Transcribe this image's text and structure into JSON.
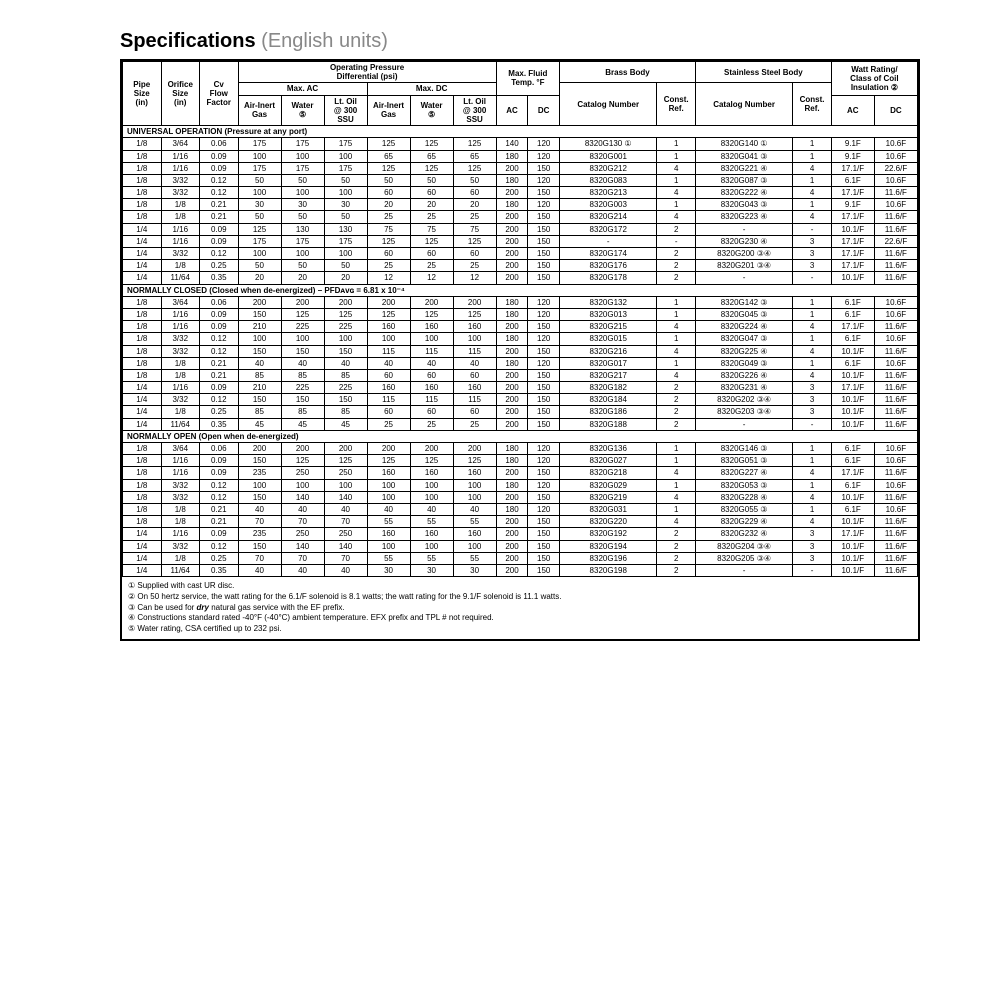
{
  "title": "Specifications",
  "subtitle": "(English units)",
  "headers": {
    "opd": "Operating Pressure\nDifferential (psi)",
    "maxac": "Max. AC",
    "maxdc": "Max. DC",
    "fluid": "Max. Fluid\nTemp. °F",
    "brass": "Brass Body",
    "ss": "Stainless Steel Body",
    "watt": "Watt Rating/\nClass of Coil\nInsulation ②",
    "pipe": "Pipe\nSize\n(in)",
    "orifice": "Orifice\nSize\n(in)",
    "cv": "Cv\nFlow\nFactor",
    "air": "Air-Inert\nGas",
    "water": "Water\n⑤",
    "oil": "Lt. Oil\n@ 300\nSSU",
    "ac": "AC",
    "dc": "DC",
    "cat": "Catalog Number",
    "ref": "Const.\nRef."
  },
  "sections": [
    {
      "label": "UNIVERSAL OPERATION (Pressure at any port)",
      "rows": [
        [
          "1/8",
          "3/64",
          "0.06",
          "175",
          "175",
          "175",
          "125",
          "125",
          "125",
          "140",
          "120",
          "8320G130 ①",
          "1",
          "8320G140 ①",
          "1",
          "9.1F",
          "10.6F"
        ],
        [
          "1/8",
          "1/16",
          "0.09",
          "100",
          "100",
          "100",
          "65",
          "65",
          "65",
          "180",
          "120",
          "8320G001",
          "1",
          "8320G041 ③",
          "1",
          "9.1F",
          "10.6F"
        ],
        [
          "1/8",
          "1/16",
          "0.09",
          "175",
          "175",
          "175",
          "125",
          "125",
          "125",
          "200",
          "150",
          "8320G212",
          "4",
          "8320G221 ④",
          "4",
          "17.1/F",
          "22.6/F"
        ],
        [
          "1/8",
          "3/32",
          "0.12",
          "50",
          "50",
          "50",
          "50",
          "50",
          "50",
          "180",
          "120",
          "8320G083",
          "1",
          "8320G087 ③",
          "1",
          "6.1F",
          "10.6F"
        ],
        [
          "1/8",
          "3/32",
          "0.12",
          "100",
          "100",
          "100",
          "60",
          "60",
          "60",
          "200",
          "150",
          "8320G213",
          "4",
          "8320G222 ④",
          "4",
          "17.1/F",
          "11.6/F"
        ],
        [
          "1/8",
          "1/8",
          "0.21",
          "30",
          "30",
          "30",
          "20",
          "20",
          "20",
          "180",
          "120",
          "8320G003",
          "1",
          "8320G043 ③",
          "1",
          "9.1F",
          "10.6F"
        ],
        [
          "1/8",
          "1/8",
          "0.21",
          "50",
          "50",
          "50",
          "25",
          "25",
          "25",
          "200",
          "150",
          "8320G214",
          "4",
          "8320G223 ④",
          "4",
          "17.1/F",
          "11.6/F"
        ],
        [
          "1/4",
          "1/16",
          "0.09",
          "125",
          "130",
          "130",
          "75",
          "75",
          "75",
          "200",
          "150",
          "8320G172",
          "2",
          "-",
          "-",
          "10.1/F",
          "11.6/F"
        ],
        [
          "1/4",
          "1/16",
          "0.09",
          "175",
          "175",
          "175",
          "125",
          "125",
          "125",
          "200",
          "150",
          "-",
          "-",
          "8320G230 ④",
          "3",
          "17.1/F",
          "22.6/F"
        ],
        [
          "1/4",
          "3/32",
          "0.12",
          "100",
          "100",
          "100",
          "60",
          "60",
          "60",
          "200",
          "150",
          "8320G174",
          "2",
          "8320G200 ③④",
          "3",
          "17.1/F",
          "11.6/F"
        ],
        [
          "1/4",
          "1/8",
          "0.25",
          "50",
          "50",
          "50",
          "25",
          "25",
          "25",
          "200",
          "150",
          "8320G176",
          "2",
          "8320G201 ③④",
          "3",
          "17.1/F",
          "11.6/F"
        ],
        [
          "1/4",
          "11/64",
          "0.35",
          "20",
          "20",
          "20",
          "12",
          "12",
          "12",
          "200",
          "150",
          "8320G178",
          "2",
          "-",
          "-",
          "10.1/F",
          "11.6/F"
        ]
      ]
    },
    {
      "label": "NORMALLY CLOSED (Closed when de-energized) – PFDᴀᴠɢ = 6.81 x 10⁻⁴",
      "rows": [
        [
          "1/8",
          "3/64",
          "0.06",
          "200",
          "200",
          "200",
          "200",
          "200",
          "200",
          "180",
          "120",
          "8320G132",
          "1",
          "8320G142 ③",
          "1",
          "6.1F",
          "10.6F"
        ],
        [
          "1/8",
          "1/16",
          "0.09",
          "150",
          "125",
          "125",
          "125",
          "125",
          "125",
          "180",
          "120",
          "8320G013",
          "1",
          "8320G045 ③",
          "1",
          "6.1F",
          "10.6F"
        ],
        [
          "1/8",
          "1/16",
          "0.09",
          "210",
          "225",
          "225",
          "160",
          "160",
          "160",
          "200",
          "150",
          "8320G215",
          "4",
          "8320G224 ④",
          "4",
          "17.1/F",
          "11.6/F"
        ],
        [
          "1/8",
          "3/32",
          "0.12",
          "100",
          "100",
          "100",
          "100",
          "100",
          "100",
          "180",
          "120",
          "8320G015",
          "1",
          "8320G047 ③",
          "1",
          "6.1F",
          "10.6F"
        ],
        [
          "1/8",
          "3/32",
          "0.12",
          "150",
          "150",
          "150",
          "115",
          "115",
          "115",
          "200",
          "150",
          "8320G216",
          "4",
          "8320G225 ④",
          "4",
          "10.1/F",
          "11.6/F"
        ],
        [
          "1/8",
          "1/8",
          "0.21",
          "40",
          "40",
          "40",
          "40",
          "40",
          "40",
          "180",
          "120",
          "8320G017",
          "1",
          "8320G049 ③",
          "1",
          "6.1F",
          "10.6F"
        ],
        [
          "1/8",
          "1/8",
          "0.21",
          "85",
          "85",
          "85",
          "60",
          "60",
          "60",
          "200",
          "150",
          "8320G217",
          "4",
          "8320G226 ④",
          "4",
          "10.1/F",
          "11.6/F"
        ],
        [
          "1/4",
          "1/16",
          "0.09",
          "210",
          "225",
          "225",
          "160",
          "160",
          "160",
          "200",
          "150",
          "8320G182",
          "2",
          "8320G231 ④",
          "3",
          "17.1/F",
          "11.6/F"
        ],
        [
          "1/4",
          "3/32",
          "0.12",
          "150",
          "150",
          "150",
          "115",
          "115",
          "115",
          "200",
          "150",
          "8320G184",
          "2",
          "8320G202 ③④",
          "3",
          "10.1/F",
          "11.6/F"
        ],
        [
          "1/4",
          "1/8",
          "0.25",
          "85",
          "85",
          "85",
          "60",
          "60",
          "60",
          "200",
          "150",
          "8320G186",
          "2",
          "8320G203 ③④",
          "3",
          "10.1/F",
          "11.6/F"
        ],
        [
          "1/4",
          "11/64",
          "0.35",
          "45",
          "45",
          "45",
          "25",
          "25",
          "25",
          "200",
          "150",
          "8320G188",
          "2",
          "-",
          "-",
          "10.1/F",
          "11.6/F"
        ]
      ]
    },
    {
      "label": "NORMALLY OPEN (Open when de-energized)",
      "rows": [
        [
          "1/8",
          "3/64",
          "0.06",
          "200",
          "200",
          "200",
          "200",
          "200",
          "200",
          "180",
          "120",
          "8320G136",
          "1",
          "8320G146 ③",
          "1",
          "6.1F",
          "10.6F"
        ],
        [
          "1/8",
          "1/16",
          "0.09",
          "150",
          "125",
          "125",
          "125",
          "125",
          "125",
          "180",
          "120",
          "8320G027",
          "1",
          "8320G051 ③",
          "1",
          "6.1F",
          "10.6F"
        ],
        [
          "1/8",
          "1/16",
          "0.09",
          "235",
          "250",
          "250",
          "160",
          "160",
          "160",
          "200",
          "150",
          "8320G218",
          "4",
          "8320G227 ④",
          "4",
          "17.1/F",
          "11.6/F"
        ],
        [
          "1/8",
          "3/32",
          "0.12",
          "100",
          "100",
          "100",
          "100",
          "100",
          "100",
          "180",
          "120",
          "8320G029",
          "1",
          "8320G053 ③",
          "1",
          "6.1F",
          "10.6F"
        ],
        [
          "1/8",
          "3/32",
          "0.12",
          "150",
          "140",
          "140",
          "100",
          "100",
          "100",
          "200",
          "150",
          "8320G219",
          "4",
          "8320G228 ④",
          "4",
          "10.1/F",
          "11.6/F"
        ],
        [
          "1/8",
          "1/8",
          "0.21",
          "40",
          "40",
          "40",
          "40",
          "40",
          "40",
          "180",
          "120",
          "8320G031",
          "1",
          "8320G055 ③",
          "1",
          "6.1F",
          "10.6F"
        ],
        [
          "1/8",
          "1/8",
          "0.21",
          "70",
          "70",
          "70",
          "55",
          "55",
          "55",
          "200",
          "150",
          "8320G220",
          "4",
          "8320G229 ④",
          "4",
          "10.1/F",
          "11.6/F"
        ],
        [
          "1/4",
          "1/16",
          "0.09",
          "235",
          "250",
          "250",
          "160",
          "160",
          "160",
          "200",
          "150",
          "8320G192",
          "2",
          "8320G232 ④",
          "3",
          "17.1/F",
          "11.6/F"
        ],
        [
          "1/4",
          "3/32",
          "0.12",
          "150",
          "140",
          "140",
          "100",
          "100",
          "100",
          "200",
          "150",
          "8320G194",
          "2",
          "8320G204 ③④",
          "3",
          "10.1/F",
          "11.6/F"
        ],
        [
          "1/4",
          "1/8",
          "0.25",
          "70",
          "70",
          "70",
          "55",
          "55",
          "55",
          "200",
          "150",
          "8320G196",
          "2",
          "8320G205 ③④",
          "3",
          "10.1/F",
          "11.6/F"
        ],
        [
          "1/4",
          "11/64",
          "0.35",
          "40",
          "40",
          "40",
          "30",
          "30",
          "30",
          "200",
          "150",
          "8320G198",
          "2",
          "-",
          "-",
          "10.1/F",
          "11.6/F"
        ]
      ]
    }
  ],
  "notes": [
    "① Supplied with cast UR disc.",
    "② On 50 hertz service, the watt rating for the 6.1/F solenoid is 8.1 watts; the watt rating for the 9.1/F solenoid is 11.1 watts.",
    "③ Can be used for dry natural gas service with the EF prefix.",
    "④ Constructions standard rated -40°F (-40°C) ambient temperature. EFX prefix and TPL # not required.",
    "⑤ Water rating, CSA certified up to 232 psi."
  ]
}
